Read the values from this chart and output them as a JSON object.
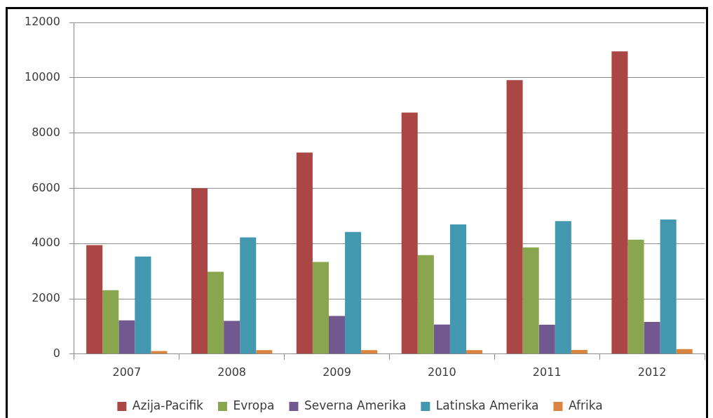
{
  "chart_data": {
    "type": "bar",
    "categories": [
      "2007",
      "2008",
      "2009",
      "2010",
      "2011",
      "2012"
    ],
    "series": [
      {
        "name": "Azija-Pacifik",
        "color": "#aa4643",
        "values": [
          3940,
          6000,
          7290,
          8740,
          9910,
          10950
        ]
      },
      {
        "name": "Evropa",
        "color": "#89a54e",
        "values": [
          2310,
          2980,
          3330,
          3580,
          3860,
          4140
        ]
      },
      {
        "name": "Severna Amerika",
        "color": "#71588f",
        "values": [
          1220,
          1200,
          1380,
          1070,
          1060,
          1160
        ]
      },
      {
        "name": "Latinska Amerika",
        "color": "#4198af",
        "values": [
          3530,
          4220,
          4420,
          4690,
          4810,
          4870
        ]
      },
      {
        "name": "Afrika",
        "color": "#db843d",
        "values": [
          110,
          140,
          140,
          140,
          150,
          180
        ]
      }
    ],
    "ylim": [
      0,
      12000
    ],
    "yticks": [
      0,
      2000,
      4000,
      6000,
      8000,
      10000,
      12000
    ],
    "grid": "y",
    "legend": "bottom"
  }
}
